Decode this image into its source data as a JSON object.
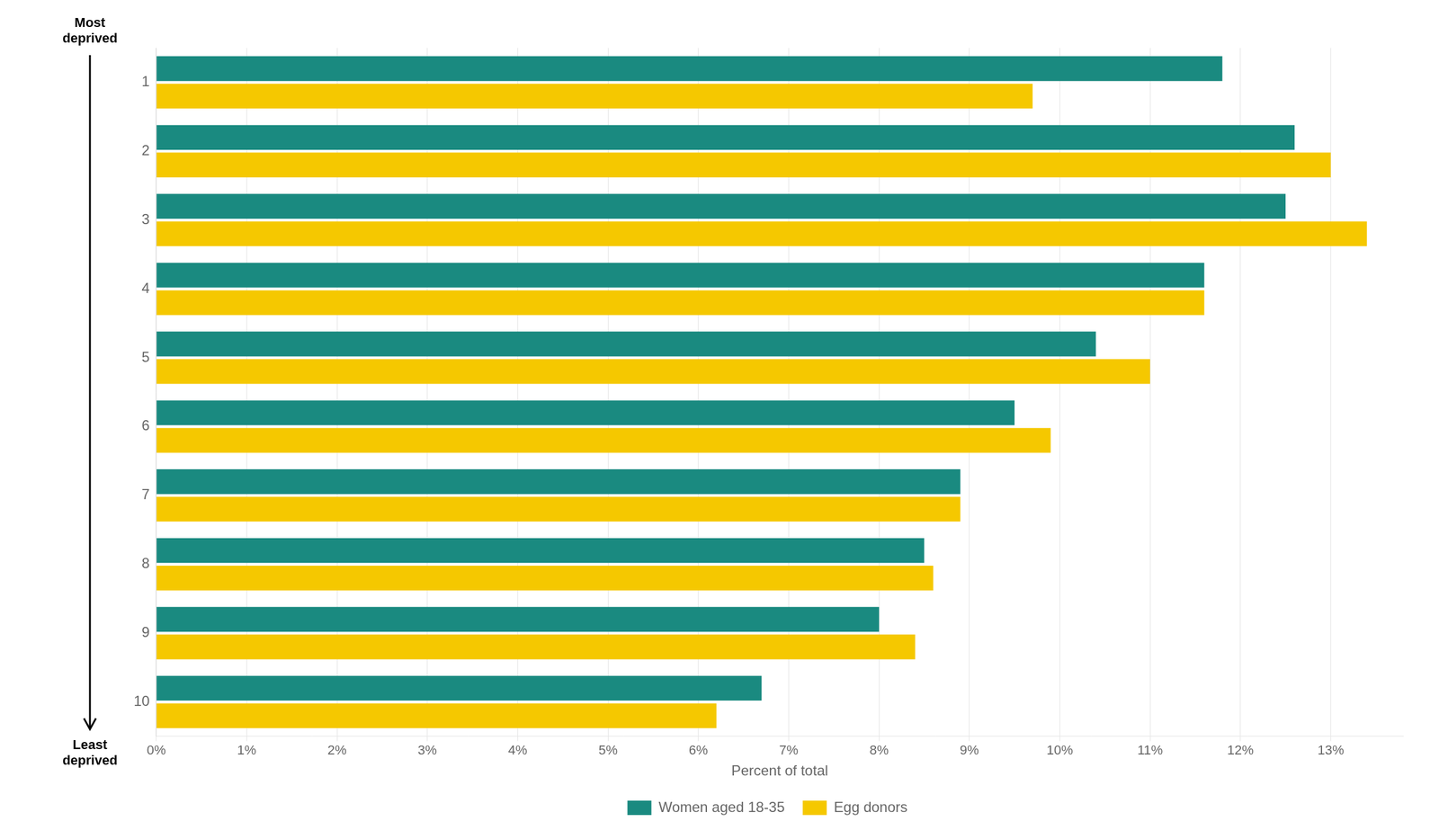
{
  "chart_data": {
    "type": "bar",
    "orientation": "horizontal",
    "categories": [
      "1",
      "2",
      "3",
      "4",
      "5",
      "6",
      "7",
      "8",
      "9",
      "10"
    ],
    "series": [
      {
        "name": "Women aged 18-35",
        "color": "#1a8a80",
        "values": [
          11.8,
          12.6,
          12.5,
          11.6,
          10.4,
          9.5,
          8.9,
          8.5,
          8.0,
          6.7
        ]
      },
      {
        "name": "Egg donors",
        "color": "#F5C800",
        "values": [
          9.7,
          13.0,
          13.4,
          11.6,
          11.0,
          9.9,
          8.9,
          8.6,
          8.4,
          6.2
        ]
      }
    ],
    "xlabel": "Percent of total",
    "xlim": [
      0,
      13.8
    ],
    "xticks": [
      {
        "value": 0,
        "label": "0%"
      },
      {
        "value": 1,
        "label": "1%"
      },
      {
        "value": 2,
        "label": "2%"
      },
      {
        "value": 3,
        "label": "3%"
      },
      {
        "value": 4,
        "label": "4%"
      },
      {
        "value": 5,
        "label": "5%"
      },
      {
        "value": 6,
        "label": "6%"
      },
      {
        "value": 7,
        "label": "7%"
      },
      {
        "value": 8,
        "label": "8%"
      },
      {
        "value": 9,
        "label": "9%"
      },
      {
        "value": 10,
        "label": "10%"
      },
      {
        "value": 11,
        "label": "11%"
      },
      {
        "value": 12,
        "label": "12%"
      },
      {
        "value": 13,
        "label": "13%"
      }
    ],
    "annotations": [
      "Most\ndeprived",
      "Least\ndeprived"
    ],
    "grid": true,
    "legend": "bottom"
  }
}
